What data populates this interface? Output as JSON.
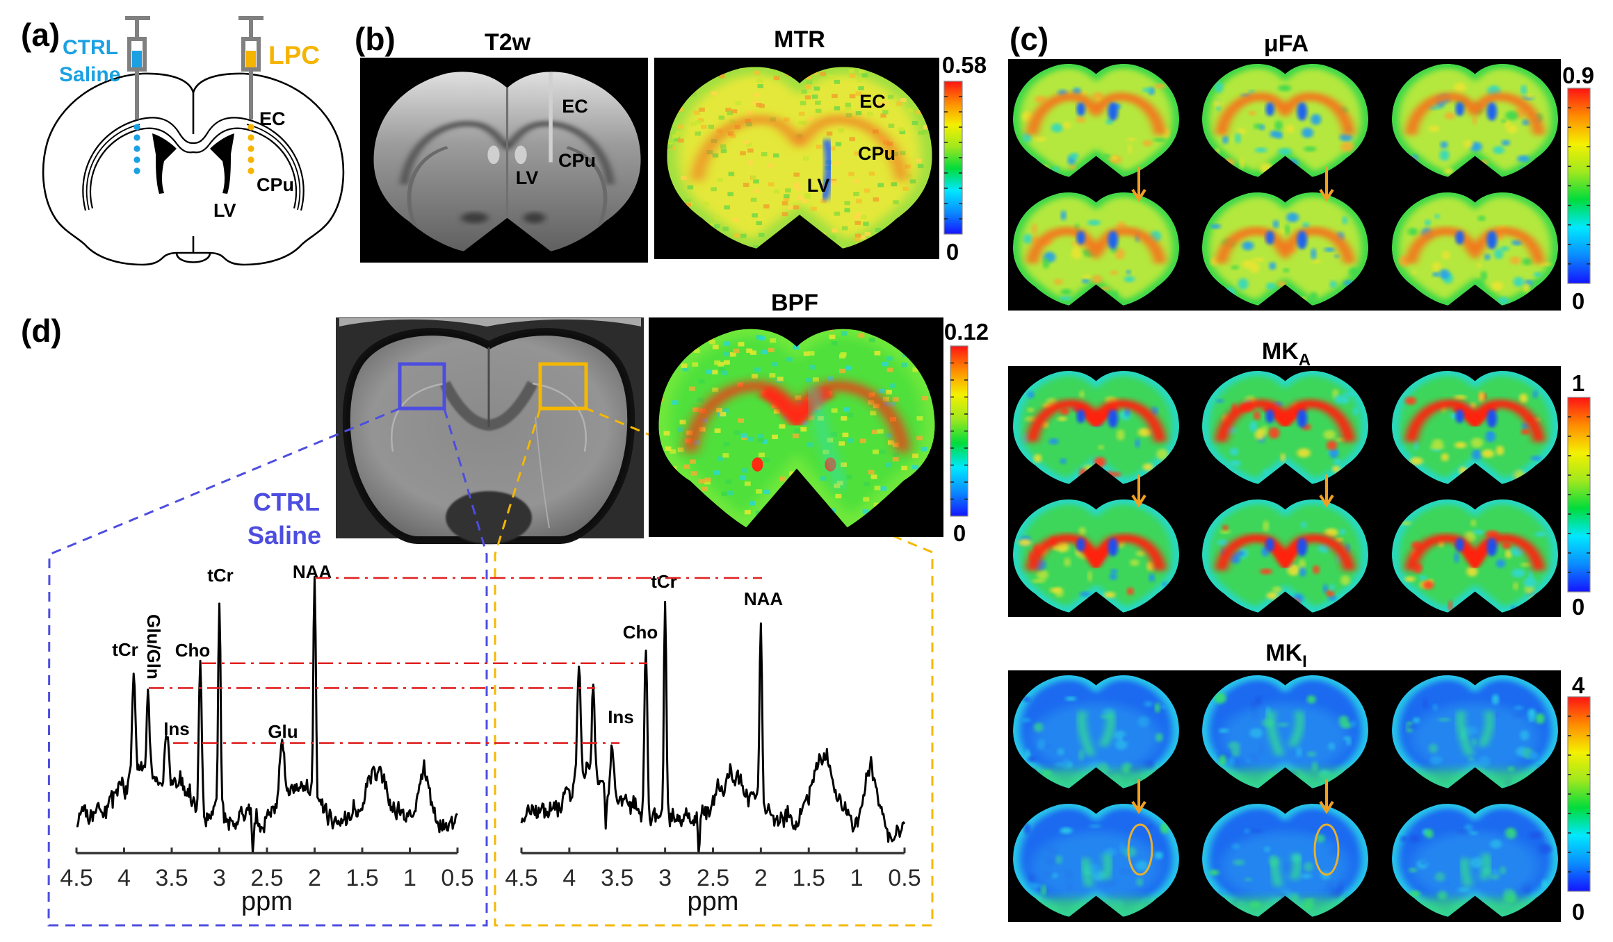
{
  "figure": {
    "panel_a": {
      "label": "(a)",
      "ctrl_line1": "CTRL",
      "ctrl_line2": "Saline",
      "lpc": "LPC",
      "ec": "EC",
      "cpu": "CPu",
      "lv": "LV"
    },
    "panel_b": {
      "label": "(b)",
      "t2w_title": "T2w",
      "mtr_title": "MTR",
      "colorbar_max": "0.58",
      "colorbar_min": "0",
      "t2w_labels": {
        "ec": "EC",
        "cpu": "CPu",
        "lv": "LV"
      },
      "mtr_labels": {
        "ec": "EC",
        "cpu": "CPu",
        "lv": "LV"
      }
    },
    "panel_c": {
      "label": "(c)",
      "maps": [
        {
          "title": "μFA",
          "colorbar_max": "0.9",
          "colorbar_min": "0"
        },
        {
          "title": "MK",
          "subscript": "A",
          "colorbar_max": "1",
          "colorbar_min": "0"
        },
        {
          "title": "MK",
          "subscript": "I",
          "colorbar_max": "4",
          "colorbar_min": "0"
        }
      ]
    },
    "panel_d": {
      "label": "(d)",
      "bpf_title": "BPF",
      "colorbar_max": "0.12",
      "colorbar_min": "0",
      "ctrl_line1": "CTRL",
      "ctrl_line2": "Saline"
    }
  },
  "colors": {
    "ctrl": "#1ba1e2",
    "lpc": "#f5b400",
    "syringe": "#808080",
    "roi_ctrl": "#4d4de0",
    "roi_lpc": "#f5b800",
    "reference_line": "#e02020",
    "arrow": "#f0a020",
    "jet": [
      "#1414ff",
      "#0a8cff",
      "#00e8ff",
      "#00dc3c",
      "#a0e81e",
      "#f4f000",
      "#ff8c00",
      "#ff1414"
    ],
    "maps": {
      "mtr": {
        "base": "#e4e83a",
        "edge": "#9ee040",
        "cc": "#f07a20",
        "vent": "#1f5cff",
        "spots": [
          "#f5c22e",
          "#c9e632",
          "#f0a42a",
          "#8fdc3c",
          "#ffd84a",
          "#72d846"
        ]
      },
      "bpf": {
        "base": "#4fe03c",
        "edge": "#6fe83a",
        "cc": "#ff2a12",
        "vent": "#30e0b0",
        "spots": [
          "#c8ec30",
          "#3cd84a",
          "#e8e830",
          "#30d8a0",
          "#f0b030",
          "#2ad8d0"
        ]
      },
      "ufa": {
        "base": "#b4e83e",
        "edge": "#3ad84a",
        "cc": "#f27a1e",
        "vent": "#1e64f0",
        "spots": [
          "#3cd850",
          "#e8e432",
          "#30d8c0",
          "#f0b030",
          "#20a0f0"
        ]
      },
      "mka": {
        "base": "#3ed65a",
        "edge": "#28d8c8",
        "cc": "#ff2010",
        "vent": "#1e50f0",
        "spots": [
          "#30d8d0",
          "#b4e43c",
          "#ff4020",
          "#2090f0",
          "#f0e030"
        ]
      },
      "mki": {
        "base": "#1c6af0",
        "edge": "#28c8e8",
        "cc": "#2ad8b0",
        "vent": "#30e090",
        "spots": [
          "#20a0f0",
          "#1a58e8",
          "#38e070",
          "#2ad0e8"
        ]
      }
    }
  },
  "chart_data": [
    {
      "type": "line",
      "xlabel": "ppm",
      "xlim": [
        4.5,
        0.5
      ],
      "ylim": [
        0,
        1.05
      ],
      "xticks": [
        4.5,
        4,
        3.5,
        3,
        2.5,
        2,
        1.5,
        1,
        0.5
      ],
      "xtick_labels": [
        "4.5",
        "4",
        "3.5",
        "3",
        "2.5",
        "2",
        "1.5",
        "1",
        "0.5"
      ],
      "grid": false,
      "peaks": [
        {
          "label": "tCr",
          "ppm": 3.9,
          "height": 0.69
        },
        {
          "label": "Glu/Gln",
          "ppm": 3.75,
          "height": 0.6
        },
        {
          "label": "Ins",
          "ppm": 3.55,
          "height": 0.4
        },
        {
          "label": "Cho",
          "ppm": 3.2,
          "height": 0.69
        },
        {
          "label": "tCr",
          "ppm": 3.0,
          "height": 0.94
        },
        {
          "label": "Glu",
          "ppm": 2.35,
          "height": 0.4
        },
        {
          "label": "NAA",
          "ppm": 2.0,
          "height": 1.0
        }
      ],
      "baseline": 0.13,
      "components": [
        {
          "ppm": 3.8,
          "amp": 0.18,
          "width": 0.3
        },
        {
          "ppm": 3.9,
          "amp": 0.4,
          "width": 0.025
        },
        {
          "ppm": 3.75,
          "amp": 0.3,
          "width": 0.02
        },
        {
          "ppm": 3.55,
          "amp": 0.18,
          "width": 0.03
        },
        {
          "ppm": 3.4,
          "amp": 0.08,
          "width": 0.15
        },
        {
          "ppm": 3.2,
          "amp": 0.53,
          "width": 0.022
        },
        {
          "ppm": 3.0,
          "amp": 0.81,
          "width": 0.018
        },
        {
          "ppm": 2.65,
          "amp": -0.16,
          "width": 0.012
        },
        {
          "ppm": 2.2,
          "amp": 0.12,
          "width": 0.2
        },
        {
          "ppm": 2.35,
          "amp": 0.2,
          "width": 0.04
        },
        {
          "ppm": 2.0,
          "amp": 0.83,
          "width": 0.018
        },
        {
          "ppm": 1.35,
          "amp": 0.16,
          "width": 0.15
        },
        {
          "ppm": 0.85,
          "amp": 0.17,
          "width": 0.07
        }
      ]
    },
    {
      "type": "line",
      "xlabel": "ppm",
      "xlim": [
        4.5,
        0.5
      ],
      "ylim": [
        0,
        1.05
      ],
      "xticks": [
        4.5,
        4,
        3.5,
        3,
        2.5,
        2,
        1.5,
        1,
        0.5
      ],
      "xtick_labels": [
        "4.5",
        "4",
        "3.5",
        "3",
        "2.5",
        "2",
        "1.5",
        "1",
        "0.5"
      ],
      "grid": false,
      "peaks": [
        {
          "ppm": 3.9,
          "height": 0.7
        },
        {
          "ppm": 3.75,
          "height": 0.6
        },
        {
          "label": "Ins",
          "ppm": 3.55,
          "height": 0.43
        },
        {
          "label": "Cho",
          "ppm": 3.2,
          "height": 0.76
        },
        {
          "label": "tCr",
          "ppm": 3.0,
          "height": 0.94
        },
        {
          "label": "NAA",
          "ppm": 2.0,
          "height": 0.86
        }
      ],
      "baseline": 0.13,
      "components": [
        {
          "ppm": 3.8,
          "amp": 0.16,
          "width": 0.3
        },
        {
          "ppm": 3.9,
          "amp": 0.43,
          "width": 0.025
        },
        {
          "ppm": 3.75,
          "amp": 0.31,
          "width": 0.02
        },
        {
          "ppm": 3.55,
          "amp": 0.2,
          "width": 0.025
        },
        {
          "ppm": 3.62,
          "amp": -0.12,
          "width": 0.012
        },
        {
          "ppm": 3.2,
          "amp": 0.62,
          "width": 0.022
        },
        {
          "ppm": 3.0,
          "amp": 0.8,
          "width": 0.018
        },
        {
          "ppm": 2.65,
          "amp": -0.16,
          "width": 0.012
        },
        {
          "ppm": 2.3,
          "amp": 0.15,
          "width": 0.2
        },
        {
          "ppm": 2.0,
          "amp": 0.68,
          "width": 0.018
        },
        {
          "ppm": 1.35,
          "amp": 0.2,
          "width": 0.15
        },
        {
          "ppm": 0.85,
          "amp": 0.17,
          "width": 0.08
        },
        {
          "ppm": 0.6,
          "amp": -0.05,
          "width": 0.1
        }
      ]
    }
  ],
  "reference_levels": [
    1.0,
    0.69,
    0.6,
    0.4
  ]
}
